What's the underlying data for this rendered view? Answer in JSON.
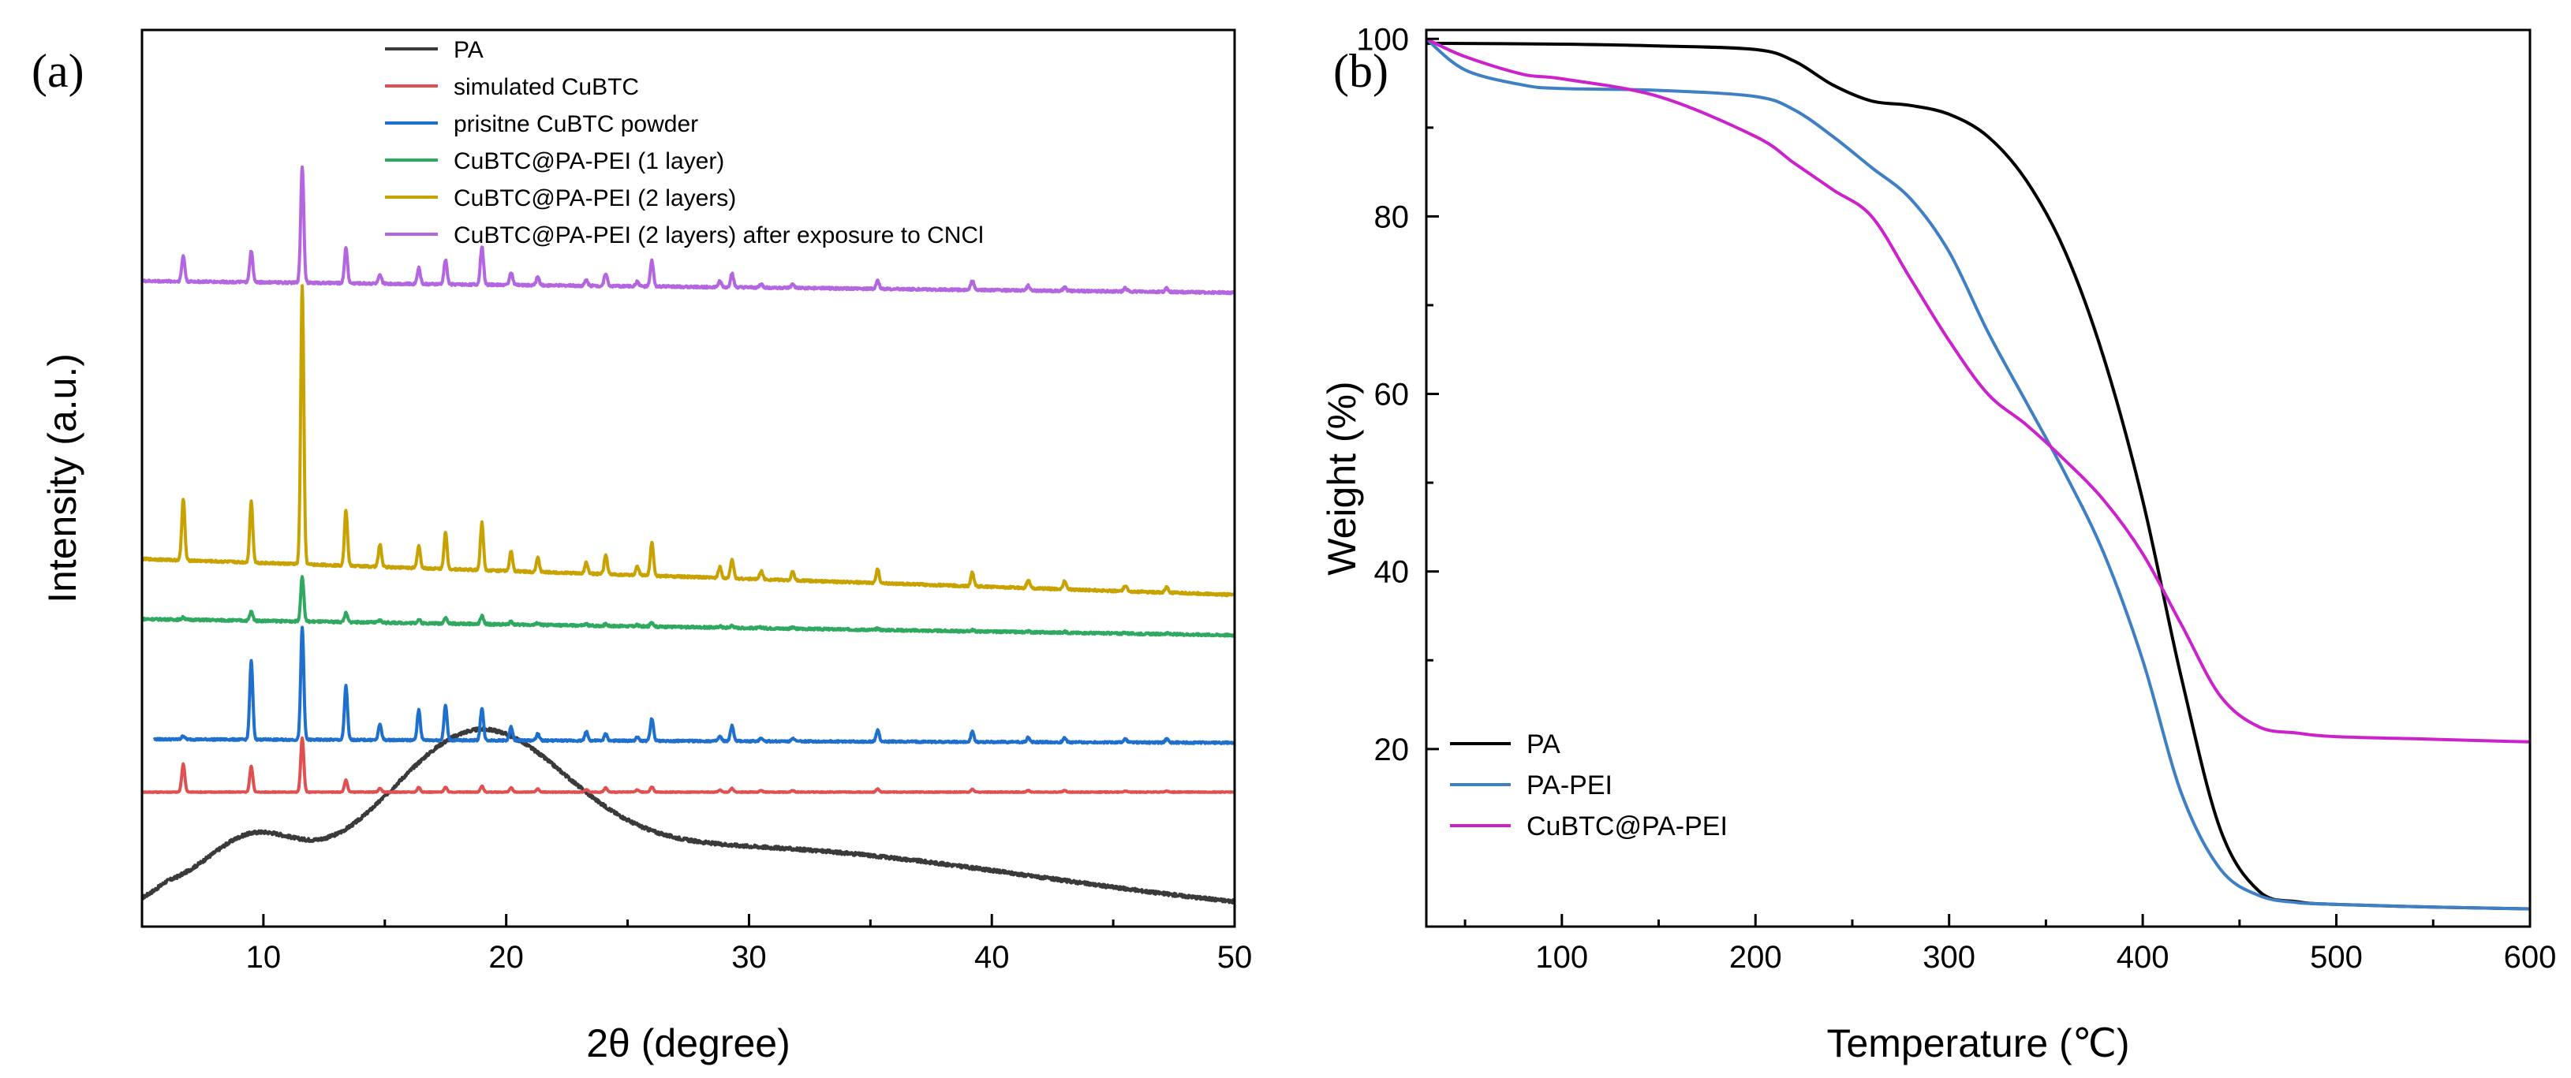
{
  "chart_data": [
    {
      "type": "line",
      "panel_label": "(a)",
      "title": "",
      "xlabel": "2θ (degree)",
      "ylabel": "Intensity (a.u.)",
      "xlim": [
        5,
        50
      ],
      "xticks": [
        10,
        20,
        30,
        40,
        50
      ],
      "y_ticks_shown": false,
      "legend_position": "top-right",
      "series": [
        {
          "name": "PA",
          "color": "#3a3a3a",
          "kind": "amorphous",
          "offset": 0.0,
          "noise": 0.0018
        },
        {
          "name": "simulated CuBTC",
          "color": "#e05050",
          "kind": "peaks",
          "offset": 0.15,
          "scale": 0.06,
          "noise": 0.0004,
          "drift": 0
        },
        {
          "name": "prisitne CuBTC powder",
          "color": "#1f6fcc",
          "kind": "peaks",
          "offset": 0.209,
          "scale": 0.125,
          "noise": 0.001,
          "drift": -0.004
        },
        {
          "name": "CuBTC@PA-PEI (1 layer)",
          "color": "#2fa860",
          "kind": "peaks",
          "offset": 0.343,
          "scale": 0.05,
          "noise": 0.0012,
          "drift": -0.018
        },
        {
          "name": "CuBTC@PA-PEI (2 layers)",
          "color": "#c8a200",
          "kind": "peaks",
          "offset": 0.41,
          "scale": 0.31,
          "noise": 0.0012,
          "drift": -0.04
        },
        {
          "name": "CuBTC@PA-PEI (2 layers) after exposure to CNCl",
          "color": "#b466e0",
          "kind": "peaks",
          "offset": 0.72,
          "scale": 0.13,
          "noise": 0.0012,
          "drift": -0.013
        }
      ],
      "peak_positions": [
        6.7,
        9.5,
        11.6,
        13.4,
        14.8,
        16.4,
        17.5,
        19.0,
        20.2,
        21.3,
        23.3,
        24.1,
        25.4,
        26.0,
        28.8,
        29.3,
        30.5,
        31.8,
        35.3,
        39.2,
        41.5,
        43.0,
        45.5,
        47.2
      ],
      "peak_heights": [
        [
          0.52,
          0.48,
          1.0,
          0.22,
          0.07,
          0.09,
          0.09,
          0.11,
          0.08,
          0.06,
          0.05,
          0.08,
          0.04,
          0.1,
          0.04,
          0.07,
          0.03,
          0.03,
          0.06,
          0.05,
          0.03,
          0.03,
          0.02,
          0.02
        ],
        [
          0.03,
          0.7,
          1.0,
          0.48,
          0.14,
          0.27,
          0.31,
          0.29,
          0.12,
          0.06,
          0.08,
          0.06,
          0.03,
          0.2,
          0.04,
          0.14,
          0.03,
          0.03,
          0.1,
          0.09,
          0.04,
          0.04,
          0.03,
          0.03
        ],
        [
          0.05,
          0.2,
          1.0,
          0.2,
          0.05,
          0.08,
          0.13,
          0.18,
          0.06,
          0.04,
          0.03,
          0.04,
          0.03,
          0.1,
          0.03,
          0.05,
          0.02,
          0.02,
          0.03,
          0.03,
          0.02,
          0.02,
          0.02,
          0.02
        ],
        [
          0.22,
          0.22,
          1.0,
          0.2,
          0.08,
          0.08,
          0.13,
          0.17,
          0.07,
          0.05,
          0.04,
          0.07,
          0.03,
          0.12,
          0.04,
          0.07,
          0.03,
          0.03,
          0.05,
          0.05,
          0.03,
          0.03,
          0.02,
          0.02
        ],
        [
          0.22,
          0.27,
          1.0,
          0.3,
          0.07,
          0.14,
          0.21,
          0.33,
          0.11,
          0.07,
          0.05,
          0.11,
          0.04,
          0.22,
          0.05,
          0.12,
          0.03,
          0.03,
          0.07,
          0.08,
          0.04,
          0.03,
          0.03,
          0.03
        ]
      ]
    },
    {
      "type": "line",
      "panel_label": "(b)",
      "title": "",
      "xlabel": "Temperature (℃)",
      "ylabel": "Weight (%)",
      "xlim": [
        30,
        600
      ],
      "ylim": [
        0,
        101
      ],
      "xticks": [
        100,
        200,
        300,
        400,
        500,
        600
      ],
      "yticks": [
        20,
        40,
        60,
        80,
        100
      ],
      "legend_position": "bottom-left",
      "series": [
        {
          "name": "PA",
          "color": "#000000",
          "x": [
            30,
            100,
            150,
            200,
            220,
            240,
            260,
            280,
            300,
            320,
            340,
            360,
            380,
            400,
            420,
            440,
            460,
            480,
            500,
            550,
            600
          ],
          "y": [
            99.5,
            99.4,
            99.2,
            98.8,
            97.5,
            94.8,
            93.0,
            92.5,
            91.5,
            89.0,
            84.0,
            76.0,
            64.0,
            48.0,
            28.0,
            11.0,
            4.0,
            2.8,
            2.5,
            2.2,
            2.0
          ]
        },
        {
          "name": "PA-PEI",
          "color": "#3f7fc4",
          "x": [
            30,
            50,
            80,
            100,
            150,
            200,
            220,
            240,
            260,
            280,
            300,
            320,
            340,
            360,
            380,
            400,
            420,
            440,
            460,
            480,
            500,
            550,
            600
          ],
          "y": [
            100.0,
            96.5,
            94.8,
            94.4,
            94.2,
            93.5,
            92.0,
            89.0,
            85.5,
            82.0,
            76.0,
            67.0,
            59.0,
            51.0,
            42.0,
            30.0,
            15.0,
            6.5,
            3.5,
            2.7,
            2.5,
            2.2,
            2.0
          ]
        },
        {
          "name": "CuBTC@PA-PEI",
          "color": "#cc22cc",
          "x": [
            30,
            50,
            80,
            100,
            150,
            200,
            220,
            240,
            260,
            280,
            300,
            320,
            340,
            360,
            380,
            400,
            420,
            440,
            460,
            480,
            500,
            550,
            600
          ],
          "y": [
            100.0,
            98.0,
            96.0,
            95.5,
            93.5,
            89.0,
            86.0,
            83.0,
            80.0,
            73.0,
            66.0,
            60.0,
            56.5,
            52.5,
            48.0,
            42.0,
            34.0,
            26.0,
            22.5,
            21.8,
            21.4,
            21.1,
            20.8
          ]
        }
      ]
    }
  ]
}
